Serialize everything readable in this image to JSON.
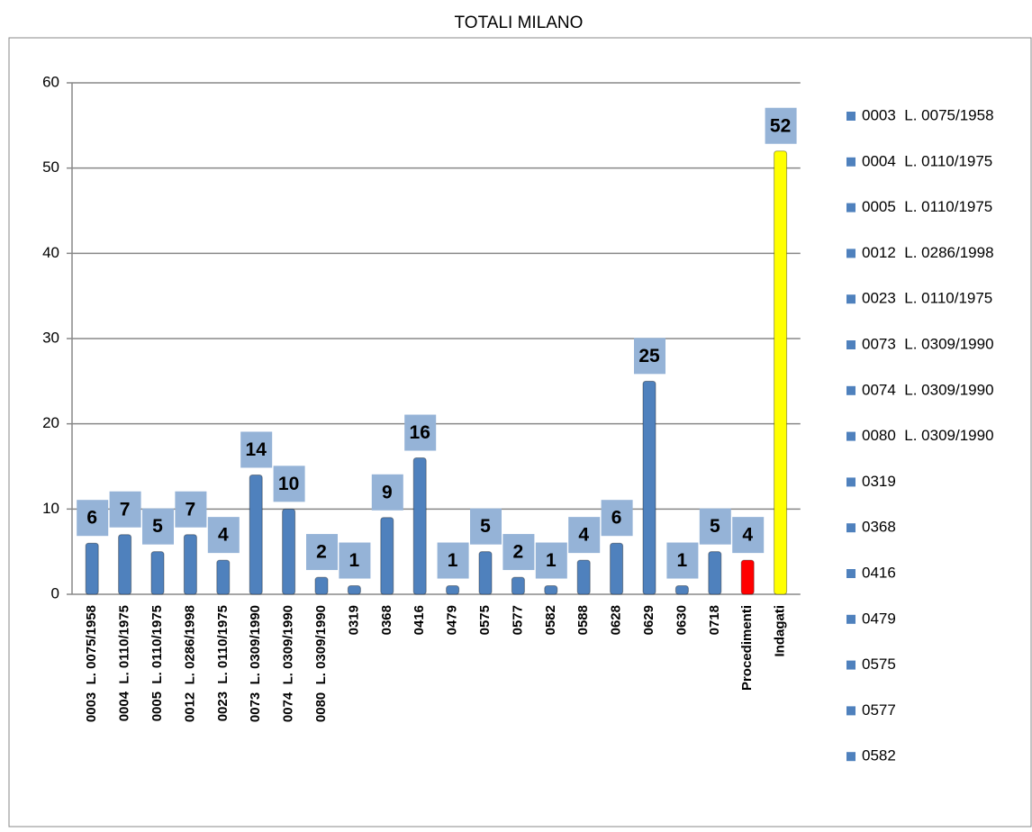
{
  "chart_data": {
    "type": "bar",
    "title": "TOTALI MILANO",
    "categories": [
      "0003  L. 0075/1958",
      "0004  L. 0110/1975",
      "0005  L. 0110/1975",
      "0012  L. 0286/1998",
      "0023  L. 0110/1975",
      "0073  L. 0309/1990",
      "0074  L. 0309/1990",
      "0080  L. 0309/1990",
      "0319",
      "0368",
      "0416",
      "0479",
      "0575",
      "0577",
      "0582",
      "0588",
      "0628",
      "0629",
      "0630",
      "0718",
      "Procedimenti",
      "Indagati"
    ],
    "values": [
      6,
      7,
      5,
      7,
      4,
      14,
      10,
      2,
      1,
      9,
      16,
      1,
      5,
      2,
      1,
      4,
      6,
      25,
      1,
      5,
      4,
      52
    ],
    "colors": [
      "#4f81bd",
      "#4f81bd",
      "#4f81bd",
      "#4f81bd",
      "#4f81bd",
      "#4f81bd",
      "#4f81bd",
      "#4f81bd",
      "#4f81bd",
      "#4f81bd",
      "#4f81bd",
      "#4f81bd",
      "#4f81bd",
      "#4f81bd",
      "#4f81bd",
      "#4f81bd",
      "#4f81bd",
      "#4f81bd",
      "#4f81bd",
      "#4f81bd",
      "#ff0000",
      "#ffff00"
    ],
    "ylim": [
      0,
      60
    ],
    "yticks": [
      0,
      10,
      20,
      30,
      40,
      50,
      60
    ],
    "grid": true,
    "legend": "right",
    "legend_visible_entries": 15
  }
}
